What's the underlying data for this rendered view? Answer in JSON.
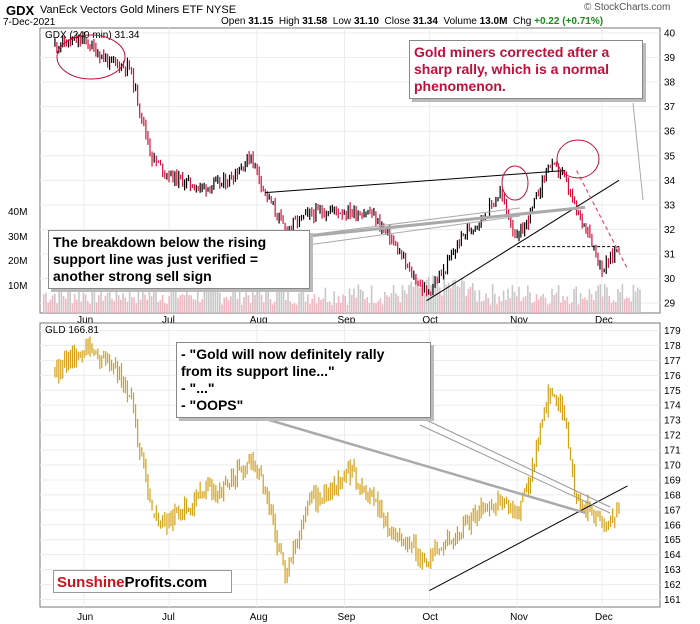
{
  "header": {
    "ticker": "GDX",
    "name": "VanEck Vectors Gold Miners ETF",
    "exchange": "NYSE",
    "date": "7-Dec-2021",
    "open_label": "Open",
    "open": "31.15",
    "high_label": "High",
    "high": "31.58",
    "low_label": "Low",
    "low": "31.10",
    "close_label": "Close",
    "close": "31.34",
    "volume_label": "Volume",
    "volume": "13.0M",
    "chg_label": "Chg",
    "chg": "+0.22 (+0.71%)",
    "source": "© StockCharts.com"
  },
  "annotations": {
    "top_right": [
      "Gold miners corrected after a",
      "sharp rally, which is a normal",
      "phenomenon."
    ],
    "left": [
      "The breakdown below the rising",
      "support line was just verified =",
      "another strong sell sign"
    ],
    "middle": [
      "- \"Gold will now definitely rally",
      "from its support line...\"",
      "- \"...\"",
      "- \"OOPS\""
    ]
  },
  "logo": {
    "part1": "Sunshine",
    "part2": "Profits.com"
  },
  "colors": {
    "up_candle": "#000000",
    "down_candle": "#d0123a",
    "gld_line": "#d4a017",
    "volume": "#c8c8c8",
    "volume_down": "#f2b6c0",
    "annotation_red": "#c0103a",
    "trend_line": "#000000",
    "breakdown_line": "#aaaaaa",
    "projection_dash": "#e05070"
  },
  "chart_data": [
    {
      "type": "line",
      "title": "GDX (240 min) 31.34",
      "y_scale": "linear",
      "ylim": [
        28.6,
        40.2
      ],
      "y_ticks": [
        29,
        30,
        31,
        32,
        33,
        34,
        35,
        36,
        37,
        38,
        39,
        40
      ],
      "x_ticks": [
        "Jun",
        "Jul",
        "Aug",
        "Sep",
        "Oct",
        "Nov",
        "Dec"
      ],
      "volume_ticks": [
        "10M",
        "20M",
        "30M",
        "40M"
      ],
      "x": [
        "May-21",
        "Jun-01",
        "Jun-10",
        "Jun-17",
        "Jun-25",
        "Jul-01",
        "Jul-12",
        "Jul-21",
        "Jul-30",
        "Aug-04",
        "Aug-11",
        "Aug-19",
        "Aug-27",
        "Sep-03",
        "Sep-10",
        "Sep-17",
        "Sep-24",
        "Sep-30",
        "Oct-06",
        "Oct-13",
        "Oct-20",
        "Oct-26",
        "Nov-01",
        "Nov-05",
        "Nov-12",
        "Nov-17",
        "Nov-22",
        "Nov-26",
        "Dec-01",
        "Dec-07"
      ],
      "series": [
        {
          "values": [
            39.5,
            39.7,
            38.8,
            38.6,
            34.9,
            34.2,
            33.7,
            33.9,
            35.0,
            33.5,
            32.0,
            32.6,
            32.8,
            32.7,
            32.7,
            31.7,
            30.3,
            29.4,
            30.3,
            31.8,
            32.5,
            33.5,
            31.6,
            32.4,
            34.6,
            34.3,
            32.7,
            32.0,
            30.3,
            31.34
          ]
        }
      ],
      "lines": {
        "upper_resistance": [
          [
            "Aug-04",
            33.5
          ],
          [
            "Nov-18",
            34.4
          ]
        ],
        "rising_support": [
          [
            "Sep-30",
            29.1
          ],
          [
            "Dec-07",
            34.0
          ]
        ],
        "breakdown_support": [
          [
            "Jul-22",
            31.4
          ],
          [
            "Nov-25",
            32.9
          ]
        ],
        "horizontal_level": [
          [
            "Nov-01",
            31.3
          ],
          [
            "Dec-07",
            31.3
          ]
        ],
        "projection": [
          [
            "Nov-22",
            34.4
          ],
          [
            "Dec-10",
            30.4
          ]
        ]
      }
    },
    {
      "type": "line",
      "title": "GLD 166.81",
      "y_scale": "linear",
      "ylim": [
        160.5,
        179.5
      ],
      "y_ticks": [
        161,
        162,
        163,
        164,
        165,
        166,
        167,
        168,
        169,
        170,
        171,
        172,
        173,
        174,
        175,
        176,
        177,
        178,
        179
      ],
      "x_ticks": [
        "Jun",
        "Jul",
        "Aug",
        "Sep",
        "Oct",
        "Nov",
        "Dec"
      ],
      "x": [
        "May-21",
        "Jun-01",
        "Jun-10",
        "Jun-17",
        "Jun-25",
        "Jul-01",
        "Jul-12",
        "Jul-21",
        "Jul-30",
        "Aug-04",
        "Aug-11",
        "Aug-19",
        "Aug-27",
        "Sep-03",
        "Sep-10",
        "Sep-17",
        "Sep-24",
        "Sep-30",
        "Oct-06",
        "Oct-13",
        "Oct-20",
        "Oct-26",
        "Nov-01",
        "Nov-05",
        "Nov-12",
        "Nov-17",
        "Nov-22",
        "Nov-26",
        "Dec-01",
        "Dec-07"
      ],
      "series": [
        {
          "values": [
            176.0,
            178.0,
            177.0,
            175.0,
            166.5,
            166.3,
            168.0,
            168.5,
            170.5,
            168.5,
            162.5,
            167.5,
            168.2,
            169.5,
            168.0,
            165.8,
            164.7,
            163.5,
            164.8,
            166.0,
            167.2,
            167.5,
            166.7,
            168.5,
            174.5,
            173.8,
            167.7,
            166.9,
            166.1,
            166.81
          ]
        }
      ],
      "lines": {
        "rising_support": [
          [
            "Oct-01",
            161.6
          ],
          [
            "Dec-10",
            168.6
          ]
        ],
        "declining_line": [
          [
            "Jul-15",
            174.2
          ],
          [
            "Nov-25",
            166.8
          ]
        ]
      }
    }
  ]
}
